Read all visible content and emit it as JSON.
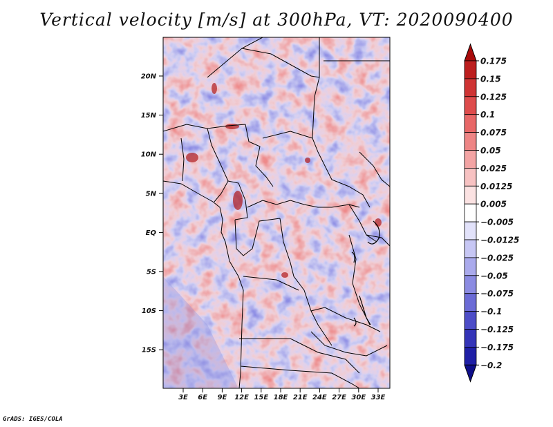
{
  "title": "Vertical velocity [m/s] at 300hPa, VT: 2020090400",
  "credit": "GrADS: IGES/COLA",
  "map": {
    "lat_labels": [
      "20N",
      "15N",
      "10N",
      "5N",
      "EQ",
      "5S",
      "10S",
      "15S"
    ],
    "lon_labels": [
      "3E",
      "6E",
      "9E",
      "12E",
      "15E",
      "18E",
      "21E",
      "24E",
      "27E",
      "30E",
      "33E"
    ]
  },
  "colorbar": {
    "labels": [
      "0.175",
      "0.15",
      "0.125",
      "0.1",
      "0.075",
      "0.05",
      "0.025",
      "0.0125",
      "0.005",
      "−0.005",
      "−0.0125",
      "−0.025",
      "−0.05",
      "−0.075",
      "−0.1",
      "−0.125",
      "−0.175",
      "−0.2"
    ],
    "colors": [
      "#a80a0a",
      "#bd1e1e",
      "#cf3434",
      "#de4c4c",
      "#e86767",
      "#ee8585",
      "#f3a4a4",
      "#f7c2c2",
      "#fbe2e2",
      "#ffffff",
      "#e2e2fa",
      "#c7c7f4",
      "#aaaaec",
      "#8b8be2",
      "#6b6bd6",
      "#4d4dc8",
      "#3434b8",
      "#1f1fa6",
      "#0e0e8a"
    ]
  }
}
